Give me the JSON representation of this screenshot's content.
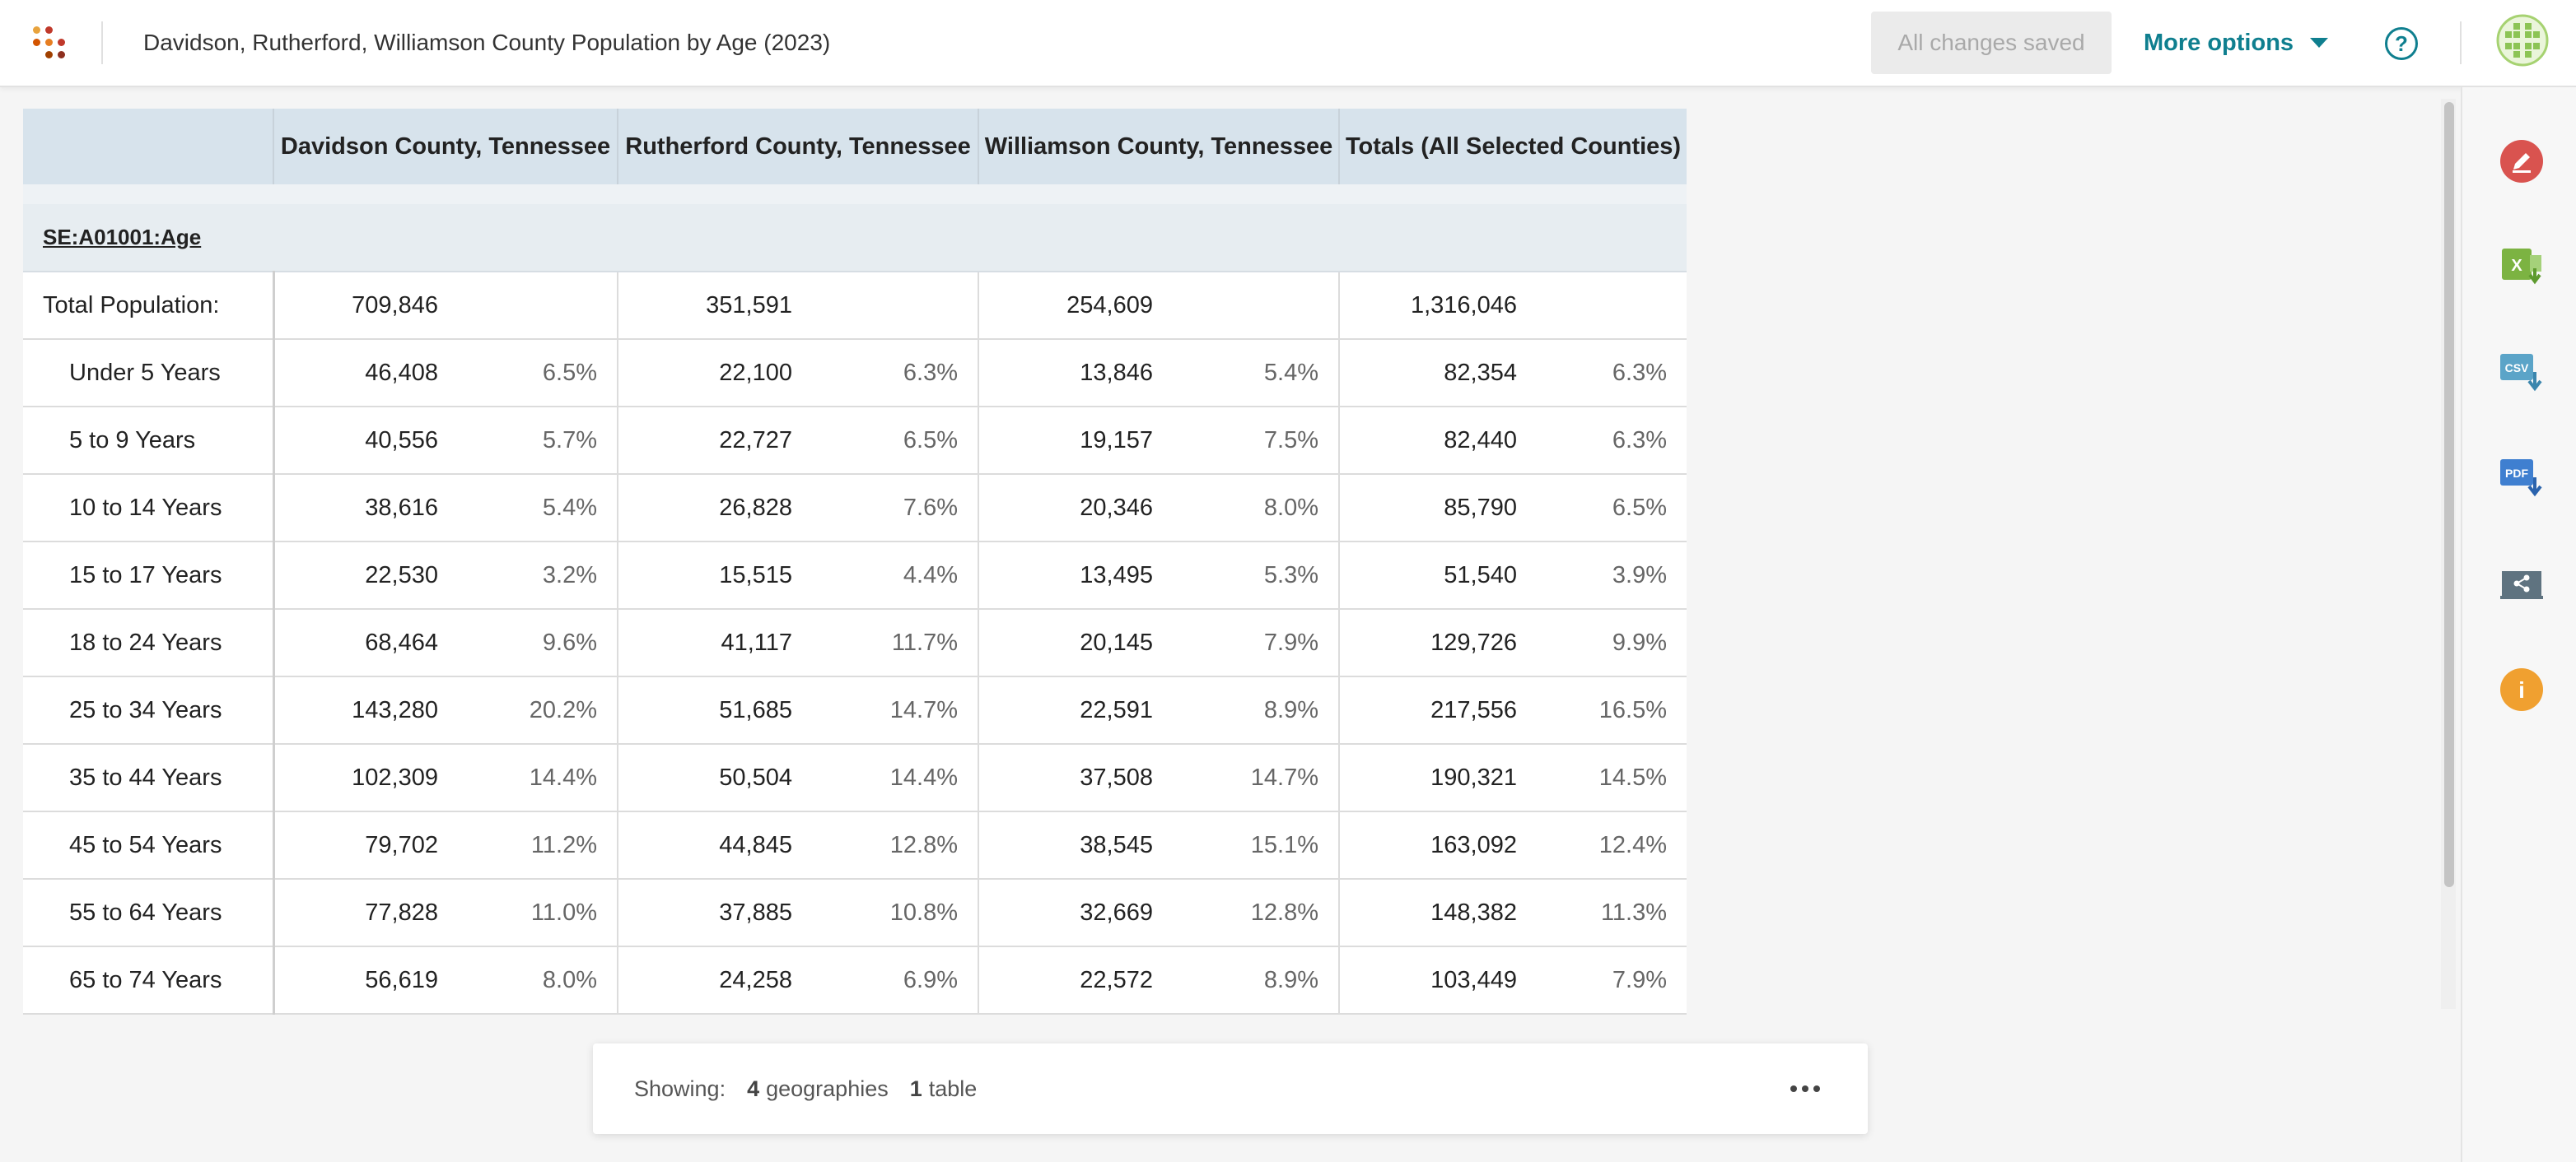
{
  "header": {
    "title": "Davidson, Rutherford, Williamson County Population by Age (2023)",
    "saved_label": "All changes saved",
    "more_options_label": "More options",
    "help_glyph": "?"
  },
  "table": {
    "columns": [
      "Davidson County, Tennessee",
      "Rutherford County, Tennessee",
      "Williamson County, Tennessee",
      "Totals (All Selected Counties)"
    ],
    "section_label": "SE:A01001:Age",
    "rows": [
      {
        "label": "Total Population:",
        "cells": [
          "709,846",
          "",
          "351,591",
          "",
          "254,609",
          "",
          "1,316,046",
          ""
        ]
      },
      {
        "label": "Under 5 Years",
        "cells": [
          "46,408",
          "6.5%",
          "22,100",
          "6.3%",
          "13,846",
          "5.4%",
          "82,354",
          "6.3%"
        ]
      },
      {
        "label": "5 to 9 Years",
        "cells": [
          "40,556",
          "5.7%",
          "22,727",
          "6.5%",
          "19,157",
          "7.5%",
          "82,440",
          "6.3%"
        ]
      },
      {
        "label": "10 to 14 Years",
        "cells": [
          "38,616",
          "5.4%",
          "26,828",
          "7.6%",
          "20,346",
          "8.0%",
          "85,790",
          "6.5%"
        ]
      },
      {
        "label": "15 to 17 Years",
        "cells": [
          "22,530",
          "3.2%",
          "15,515",
          "4.4%",
          "13,495",
          "5.3%",
          "51,540",
          "3.9%"
        ]
      },
      {
        "label": "18 to 24 Years",
        "cells": [
          "68,464",
          "9.6%",
          "41,117",
          "11.7%",
          "20,145",
          "7.9%",
          "129,726",
          "9.9%"
        ]
      },
      {
        "label": "25 to 34 Years",
        "cells": [
          "143,280",
          "20.2%",
          "51,685",
          "14.7%",
          "22,591",
          "8.9%",
          "217,556",
          "16.5%"
        ]
      },
      {
        "label": "35 to 44 Years",
        "cells": [
          "102,309",
          "14.4%",
          "50,504",
          "14.4%",
          "37,508",
          "14.7%",
          "190,321",
          "14.5%"
        ]
      },
      {
        "label": "45 to 54 Years",
        "cells": [
          "79,702",
          "11.2%",
          "44,845",
          "12.8%",
          "38,545",
          "15.1%",
          "163,092",
          "12.4%"
        ]
      },
      {
        "label": "55 to 64 Years",
        "cells": [
          "77,828",
          "11.0%",
          "37,885",
          "10.8%",
          "32,669",
          "12.8%",
          "148,382",
          "11.3%"
        ]
      },
      {
        "label": "65 to 74 Years",
        "cells": [
          "56,619",
          "8.0%",
          "24,258",
          "6.9%",
          "22,572",
          "8.9%",
          "103,449",
          "7.9%"
        ]
      }
    ]
  },
  "status": {
    "showing_label": "Showing:",
    "geographies_count": "4",
    "geographies_label": "geographies",
    "tables_count": "1",
    "tables_label": "table"
  },
  "sidebar": {
    "items": [
      {
        "name": "edit-icon",
        "color": "#d9534f"
      },
      {
        "name": "excel-download-icon",
        "color": "#7cb342",
        "text": "X"
      },
      {
        "name": "csv-download-icon",
        "color": "#5ba4c8",
        "text": "CSV"
      },
      {
        "name": "pdf-download-icon",
        "color": "#3f7fd0",
        "text": "PDF"
      },
      {
        "name": "share-icon",
        "color": "#5f7380"
      },
      {
        "name": "info-icon",
        "color": "#f0a030",
        "text": "i"
      }
    ]
  },
  "colors": {
    "accent": "#0f7f8f",
    "header_bg": "#d7e3ec",
    "section_bg": "#e7edf1"
  }
}
